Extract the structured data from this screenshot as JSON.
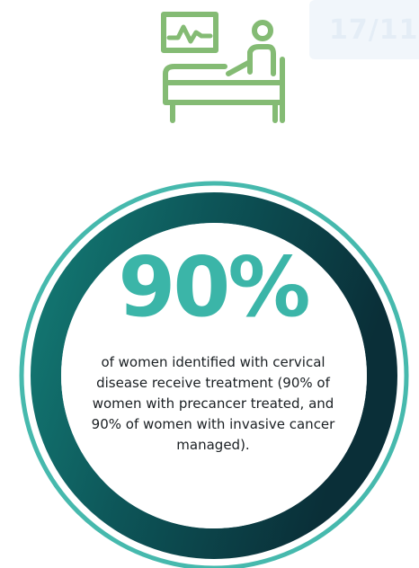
{
  "page_badge": "17/11",
  "stat": {
    "value": "90%",
    "description": "of women identified with cervical disease receive treatment (90% of women with precancer treated, and 90% of women with invasive cancer managed)."
  },
  "colors": {
    "icon": "#84bb74",
    "accent": "#3bb5a8",
    "ring_dark": "#0c3a42",
    "ring_mid": "#0f6e6a",
    "ring_outer": "#46b9ad",
    "text": "#1a1f23"
  },
  "icons": {
    "hero": "patient-bed-monitor-icon"
  }
}
